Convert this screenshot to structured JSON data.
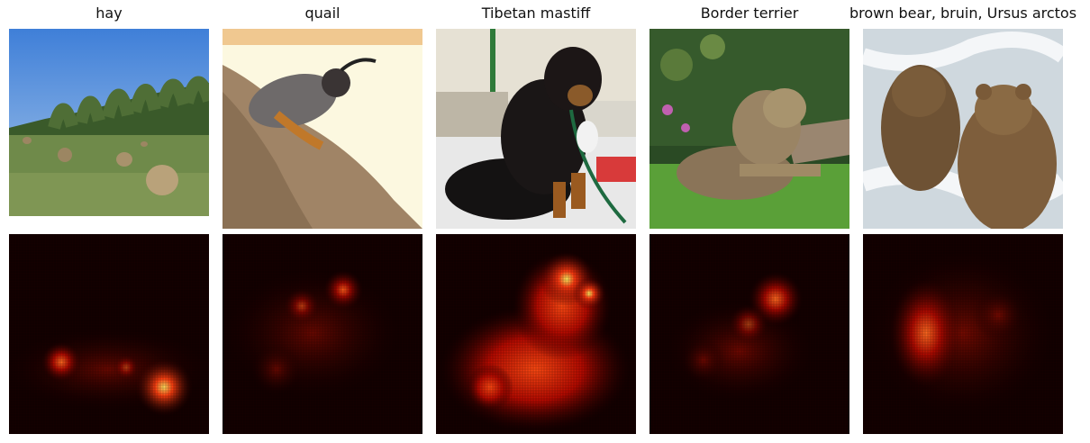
{
  "panels": [
    {
      "label": "hay",
      "photo_subject": "hay-bales-field"
    },
    {
      "label": "quail",
      "photo_subject": "quail-on-rock"
    },
    {
      "label": "Tibetan mastiff",
      "photo_subject": "black-dog-sitting"
    },
    {
      "label": "Border terrier",
      "photo_subject": "terrier-on-grass"
    },
    {
      "label": "brown bear, bruin, Ursus arctos",
      "photo_subject": "bears-in-river"
    }
  ],
  "colors": {
    "heat_low": "#0c0000",
    "heat_mid": "#c01000",
    "heat_high": "#ffe060"
  }
}
